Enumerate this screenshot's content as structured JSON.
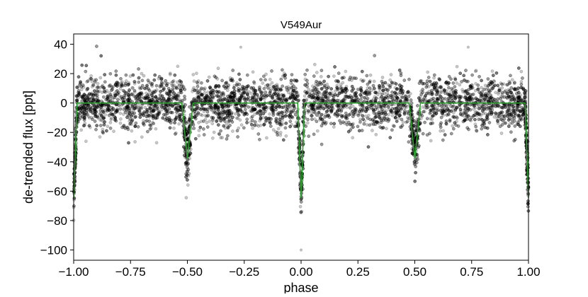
{
  "chart_data": {
    "type": "scatter",
    "title": "V549Aur",
    "xlabel": "phase",
    "ylabel": "de-trended flux [ppt]",
    "xlim": [
      -1.0,
      1.0
    ],
    "ylim": [
      -107,
      47
    ],
    "xticks": [
      -1.0,
      -0.75,
      -0.5,
      -0.25,
      0.0,
      0.25,
      0.5,
      0.75,
      1.0
    ],
    "xtick_labels": [
      "−1.00",
      "−0.75",
      "−0.50",
      "−0.25",
      "0.00",
      "0.25",
      "0.50",
      "0.75",
      "1.00"
    ],
    "yticks": [
      40,
      20,
      0,
      -20,
      -40,
      -60,
      -80,
      -100
    ],
    "ytick_labels": [
      "40",
      "20",
      "0",
      "−20",
      "−40",
      "−60",
      "−80",
      "−100"
    ],
    "grid": false,
    "colors": {
      "points": "#000000",
      "model": "#2ca02c"
    },
    "series": [
      {
        "type": "scatter",
        "description_of_distribution": "dense noisy photometry around 0 ppt with scatter roughly -35 to +40, plus eclipse dips",
        "x": [
          -0.98,
          -0.9,
          -0.8,
          -0.7,
          -0.6,
          -0.52,
          -0.5,
          -0.48,
          -0.4,
          -0.3,
          -0.2,
          -0.1,
          -0.02,
          0.0,
          0.02,
          0.1,
          0.2,
          0.3,
          0.4,
          0.48,
          0.5,
          0.52,
          0.6,
          0.7,
          0.8,
          0.9,
          0.98,
          -0.265,
          0.0,
          0.735
        ],
        "y": [
          -55,
          2,
          1,
          0,
          -1,
          -20,
          -40,
          -18,
          1,
          0,
          2,
          -1,
          -45,
          -65,
          -40,
          1,
          0,
          -2,
          0,
          -22,
          -40,
          -20,
          1,
          2,
          0,
          1,
          -50,
          38,
          -100,
          38
        ]
      },
      {
        "type": "line",
        "x": [
          -1.0,
          -0.985,
          -0.525,
          -0.5,
          -0.475,
          -0.015,
          0.0,
          0.015,
          0.475,
          0.5,
          0.525,
          0.985,
          1.0
        ],
        "y": [
          -65,
          0,
          0,
          -38,
          0,
          0,
          -65,
          0,
          0,
          -38,
          0,
          0,
          -65
        ]
      }
    ]
  }
}
